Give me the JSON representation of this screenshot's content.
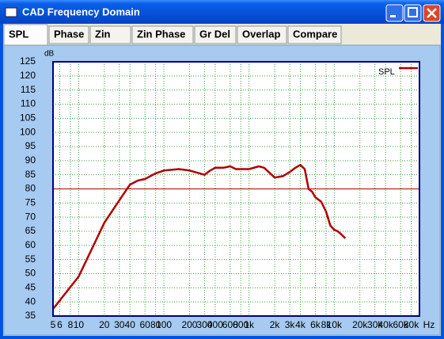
{
  "window": {
    "title": "CAD Frequency Domain",
    "tabs": [
      "SPL",
      "Phase",
      "Zin",
      "Zin Phase",
      "Gr Del",
      "Overlap",
      "Compare"
    ],
    "selected_tab": 0
  },
  "chart_data": {
    "type": "line",
    "xscale": "log",
    "grid": true,
    "y_unit": "dB",
    "x_unit": "Hz",
    "xlim": [
      5,
      100000
    ],
    "ylim": [
      35,
      125
    ],
    "xticks": [
      5,
      6,
      8,
      10,
      20,
      30,
      40,
      60,
      80,
      100,
      200,
      300,
      400,
      600,
      800,
      {
        "value": 1000,
        "label": "1k"
      },
      {
        "value": 2000,
        "label": "2k"
      },
      {
        "value": 3000,
        "label": "3k"
      },
      {
        "value": 4000,
        "label": "4k"
      },
      {
        "value": 6000,
        "label": "6k"
      },
      {
        "value": 8000,
        "label": "8k"
      },
      {
        "value": 10000,
        "label": "10k"
      },
      {
        "value": 20000,
        "label": "20k"
      },
      {
        "value": 30000,
        "label": "30k"
      },
      {
        "value": 40000,
        "label": "40k"
      },
      {
        "value": 60000,
        "label": "60k"
      },
      {
        "value": 80000,
        "label": "80k"
      }
    ],
    "yticks": [
      35,
      40,
      45,
      50,
      55,
      60,
      65,
      70,
      75,
      80,
      85,
      90,
      95,
      100,
      105,
      110,
      115,
      120,
      125
    ],
    "reference_y": 80,
    "reference_color": "#b00000",
    "legend": "top-right",
    "x": [
      5,
      10,
      20,
      30,
      40,
      50,
      60,
      80,
      100,
      150,
      200,
      300,
      350,
      400,
      500,
      600,
      700,
      900,
      1000,
      1300,
      1500,
      2000,
      2500,
      3000,
      3500,
      4000,
      4500,
      5000,
      5500,
      6000,
      7000,
      8000,
      9000,
      10000,
      11000,
      12000,
      13500
    ],
    "series": [
      {
        "name": "SPL",
        "color": "#b00000",
        "values": [
          37.5,
          49,
          68,
          76,
          81.5,
          83,
          83.5,
          85.5,
          86.5,
          87,
          86.5,
          85,
          86.5,
          87.5,
          87.5,
          88,
          87,
          87,
          87,
          88,
          87.5,
          84,
          84.5,
          86,
          87.5,
          88.5,
          87,
          80,
          79,
          77,
          75.5,
          72,
          67,
          65.5,
          65,
          64,
          62.5
        ]
      }
    ]
  }
}
